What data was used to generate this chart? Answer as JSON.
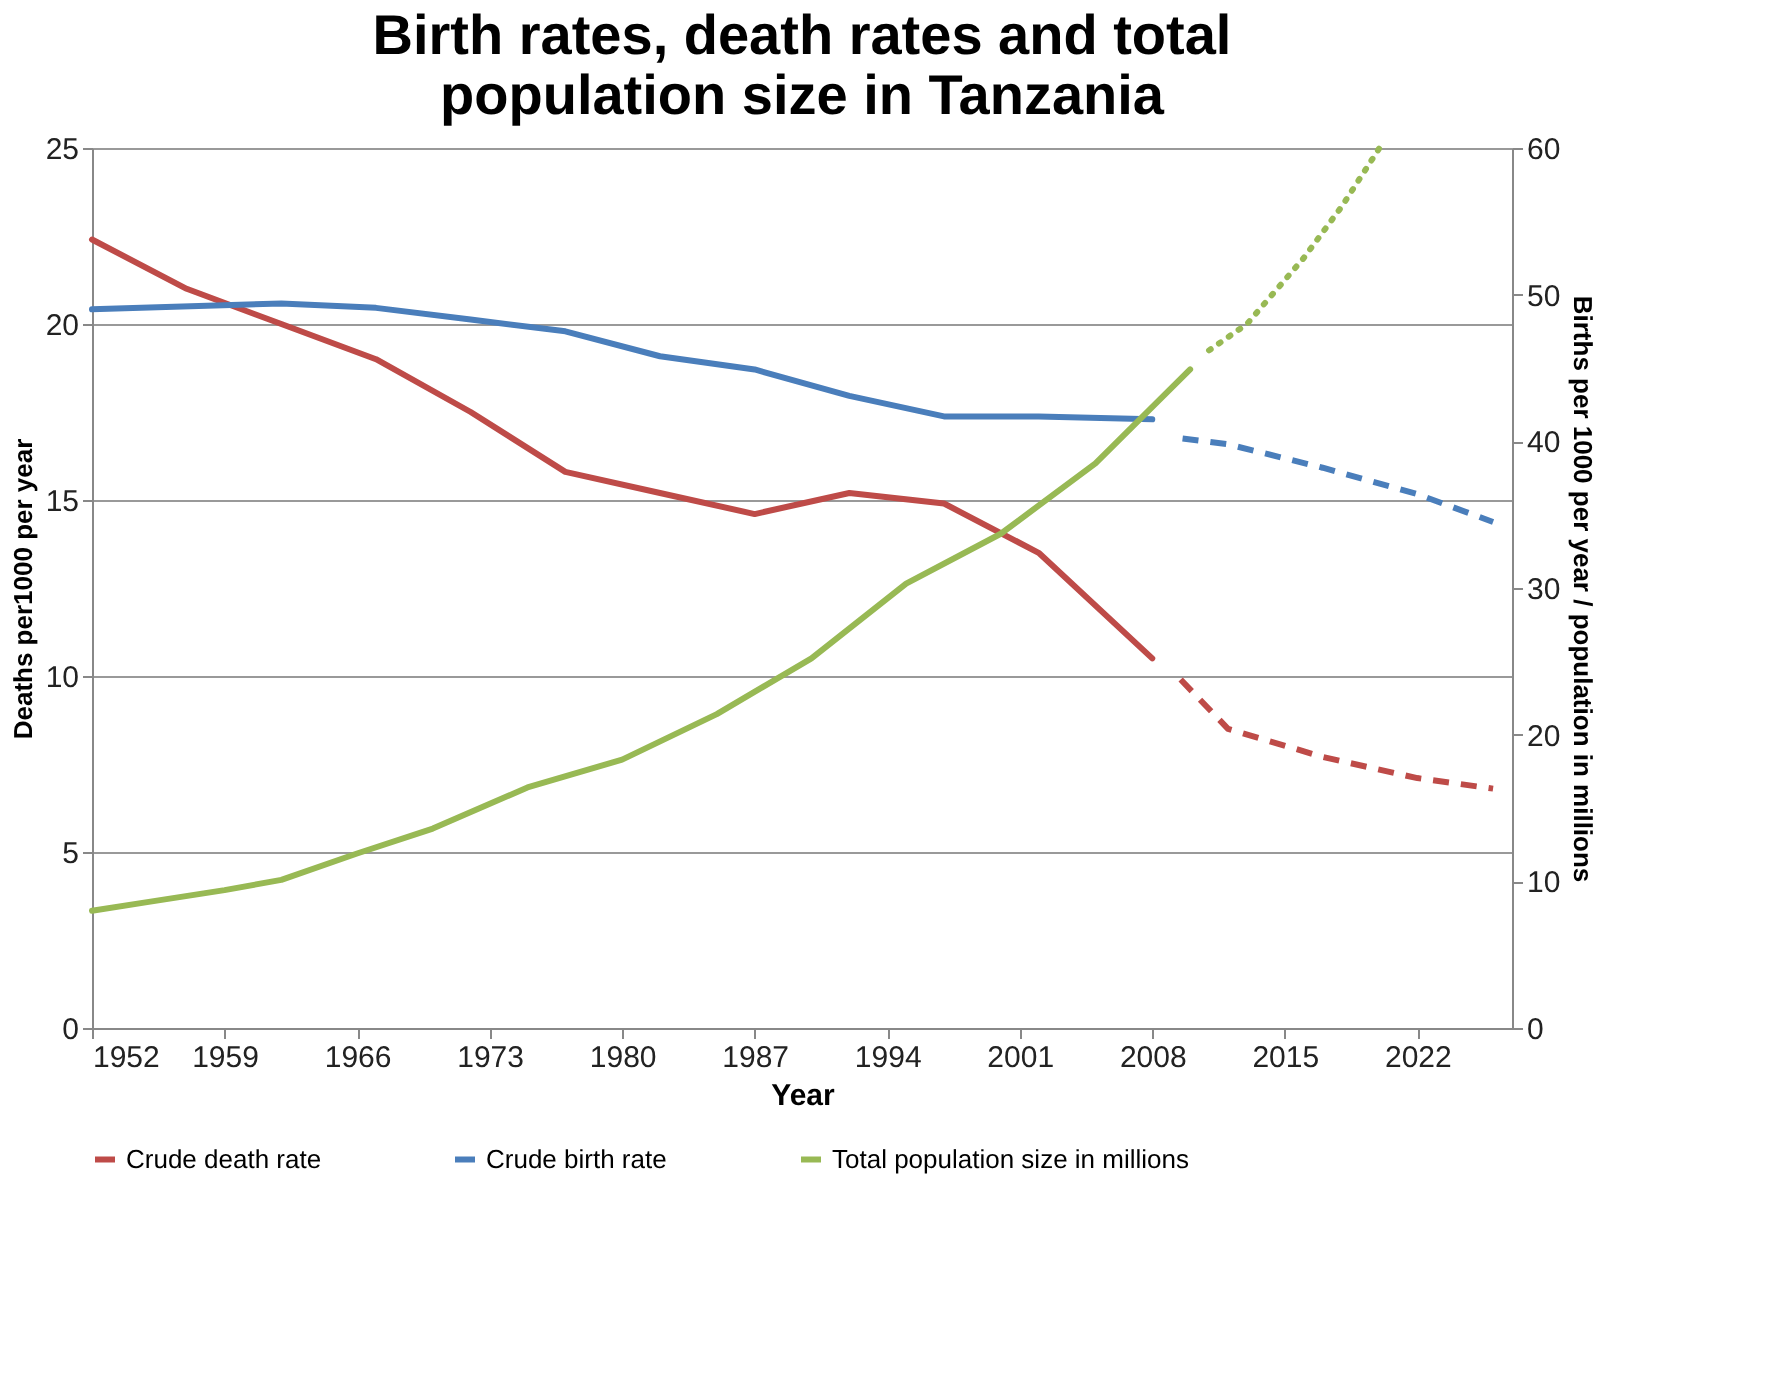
{
  "chart_data": {
    "type": "line",
    "title": "Birth rates, death rates and total population size in Tanzania",
    "xlabel": "Year",
    "ylabel": "Deaths per1000 per year",
    "y2label": "Births per 1000 per year / population in millions",
    "xlim": [
      1952,
      2027
    ],
    "xticks": [
      1952,
      1959,
      1966,
      1973,
      1980,
      1987,
      1994,
      2001,
      2008,
      2015,
      2022
    ],
    "ylim": [
      0,
      25
    ],
    "yticks": [
      0,
      5,
      10,
      15,
      20,
      25
    ],
    "y2lim": [
      0,
      60
    ],
    "y2ticks": [
      0,
      10,
      20,
      30,
      40,
      50,
      60
    ],
    "grid": "y",
    "legend": "bottom",
    "marker": "none",
    "series": [
      {
        "name": "Crude death rate",
        "color": "#be4b48",
        "line_style": "solid",
        "x": [
          1952,
          1957,
          1962,
          1967,
          1972,
          1977,
          1982,
          1987,
          1992,
          1997,
          2002,
          2008
        ],
        "values": [
          22.4,
          21.0,
          20.0,
          19.0,
          17.5,
          15.8,
          15.2,
          14.6,
          15.2,
          14.9,
          13.5,
          10.5
        ]
      },
      {
        "name": "Crude birth rate",
        "color": "#4a7ebb",
        "axis": "y2",
        "line_style": "solid",
        "x": [
          1952,
          1962,
          1967,
          1972,
          1977,
          1982,
          1987,
          1992,
          1997,
          2002,
          2008
        ],
        "values": [
          49.0,
          49.4,
          49.1,
          48.3,
          47.5,
          45.8,
          44.9,
          43.1,
          41.7,
          41.7,
          41.5
        ]
      },
      {
        "name": "Total population size in millions",
        "color": "#98b954",
        "axis": "y2",
        "line_style": "solid",
        "x": [
          1952,
          1955,
          1959,
          1962,
          1966,
          1970,
          1975,
          1980,
          1985,
          1990,
          1995,
          2000,
          2005,
          2010
        ],
        "values": [
          8.0,
          8.6,
          9.4,
          10.1,
          11.9,
          13.6,
          16.4,
          18.3,
          21.4,
          25.2,
          30.3,
          33.7,
          38.5,
          44.9
        ]
      },
      {
        "color": "#be4b48",
        "line_style": "dashed",
        "x": [
          2009.5,
          2012,
          2017,
          2022,
          2026
        ],
        "values": [
          9.9,
          8.5,
          7.7,
          7.1,
          6.8
        ]
      },
      {
        "color": "#4a7ebb",
        "axis": "y2",
        "line_style": "dashed",
        "x": [
          2009.6,
          2012,
          2017,
          2022,
          2026
        ],
        "values": [
          40.2,
          39.8,
          38.2,
          36.4,
          34.5
        ]
      },
      {
        "color": "#98b954",
        "axis": "y2",
        "line_style": "dotted",
        "x": [
          2011,
          2013,
          2016,
          2018,
          2020
        ],
        "values": [
          46.2,
          48.0,
          52.5,
          56.0,
          60.0
        ]
      }
    ]
  }
}
